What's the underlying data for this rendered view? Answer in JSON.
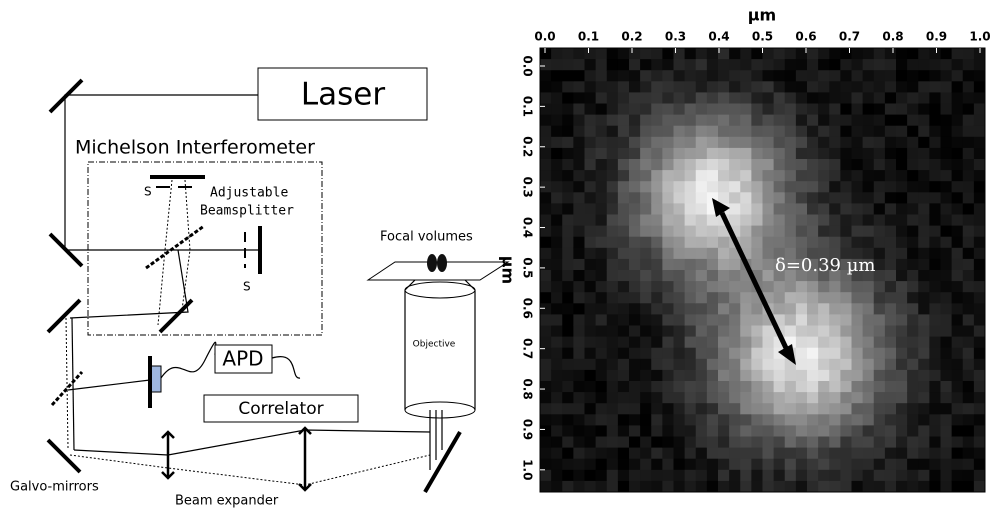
{
  "setup": {
    "laser": "Laser",
    "interferometer": "Michelson Interferometer",
    "shutter_top": "S",
    "shutter_right": "S",
    "beamsplitter_line1": "Adjustable",
    "beamsplitter_line2": "Beamsplitter",
    "focal_volumes": "Focal volumes",
    "objective": "Objective",
    "apd": "APD",
    "correlator": "Correlator",
    "galvo": "Galvo-mirrors",
    "beam_expander": "Beam expander"
  },
  "image_panel": {
    "x_label": "µm",
    "y_label": "µm",
    "annotation": "δ=0.39 µm",
    "xlim": [
      0,
      1
    ],
    "ylim": [
      0,
      1.05
    ],
    "xticks": [
      {
        "value": 0,
        "label": "0.0"
      },
      {
        "value": 0.1,
        "label": "0.1"
      },
      {
        "value": 0.2,
        "label": "0.2"
      },
      {
        "value": 0.3,
        "label": "0.3"
      },
      {
        "value": 0.4,
        "label": "0.4"
      },
      {
        "value": 0.5,
        "label": "0.5"
      },
      {
        "value": 0.6,
        "label": "0.6"
      },
      {
        "value": 0.7,
        "label": "0.7"
      },
      {
        "value": 0.8,
        "label": "0.8"
      },
      {
        "value": 0.9,
        "label": "0.9"
      },
      {
        "value": 1,
        "label": "1.0"
      }
    ],
    "yticks": [
      {
        "value": 0,
        "label": "0.0"
      },
      {
        "value": 0.1,
        "label": "0.1"
      },
      {
        "value": 0.2,
        "label": "0.2"
      },
      {
        "value": 0.3,
        "label": "0.3"
      },
      {
        "value": 0.4,
        "label": "0.4"
      },
      {
        "value": 0.5,
        "label": "0.5"
      },
      {
        "value": 0.6,
        "label": "0.6"
      },
      {
        "value": 0.7,
        "label": "0.7"
      },
      {
        "value": 0.8,
        "label": "0.8"
      },
      {
        "value": 0.9,
        "label": "0.9"
      },
      {
        "value": 1,
        "label": "1.0"
      }
    ]
  }
}
